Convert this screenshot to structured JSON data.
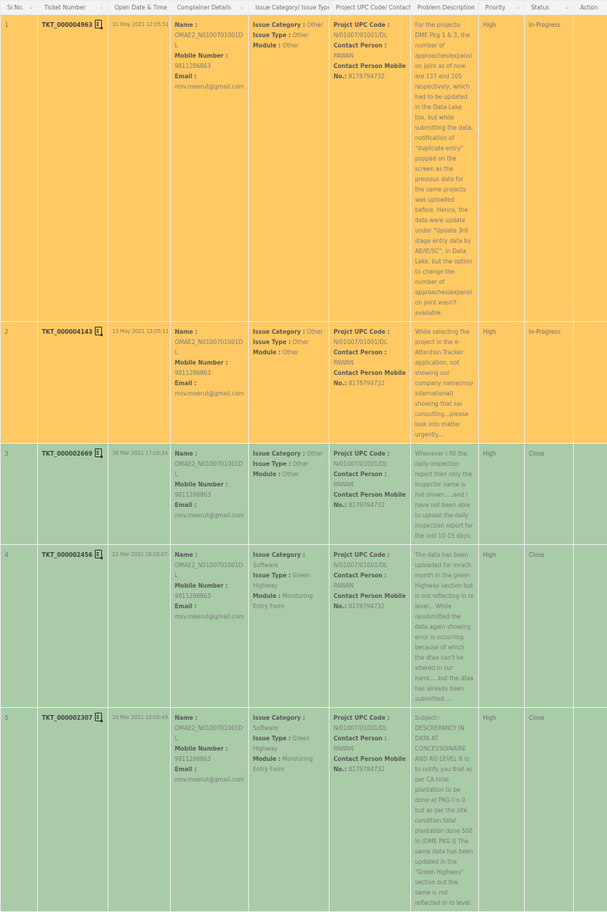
{
  "table": {
    "headers": [
      {
        "label": "Sr.No.",
        "sortable": true
      },
      {
        "label": "Ticket Number",
        "sortable": true
      },
      {
        "label": "Open Date & Time",
        "sortable": true
      },
      {
        "label": "Complainer Details",
        "sortable": true
      },
      {
        "label": "Issue Category/ Issue Type",
        "sortable": true
      },
      {
        "label": "Project UPC Code/ Contact",
        "sortable": true
      },
      {
        "label": "Problem Description",
        "sortable": true
      },
      {
        "label": "Priority",
        "sortable": true
      },
      {
        "label": "Status",
        "sortable": true
      },
      {
        "label": "Action",
        "sortable": false
      }
    ],
    "sort_icon": "chevron-down-icon",
    "labels": {
      "name": "Name :",
      "mobile": "Mobile Number :",
      "email": "Email :",
      "issue_category": "Issue Category :",
      "issue_type": "Issue Type :",
      "module": "Module :",
      "upc": "Projct UPC Code :",
      "contact_person": "Contact Person :",
      "contact_mobile": "Contact Person Mobile No.:"
    },
    "colors": {
      "in_progress_row": "#ffc964",
      "closed_row": "#a9cba8",
      "header_bg": "#f3f3f3"
    },
    "rows": [
      {
        "sr": "1",
        "ticket": "TKT_000004963",
        "ticket_icon": "clipboard-icon",
        "date": "31 May 2021 12:05:51",
        "name": "OMAE2_N0100701001DL",
        "mobile": "9811286863",
        "email": "msv.meerut@gmail.com",
        "issue_category": "Other",
        "issue_type": "Other",
        "module": "Other",
        "upc": "N/01007/01001/DL",
        "contact_person": "PAWAN",
        "contact_mobile": "8178794732",
        "description": "For the projects- DME Pkg 1 & 3, the number of approaches/expansion joint as of now are 137 and 105 respectively, which had to be updated in the Data Lake too, but while submitting the data, notification of \"duplicate entry\" popped on the screen as the previous data for the same projects was uploaded before. Hence, the data were update under \"Update 3rd stage entry data by AE/IE/SC\", in Data Lake, but the option to change the number of approaches/expansion joint wasn't available.",
        "priority": "High",
        "status": "In-Progress",
        "action": ""
      },
      {
        "sr": "2",
        "ticket": "TKT_000004143",
        "ticket_icon": "clipboard-icon",
        "date": "13 May 2021 13:05:11",
        "name": "OMAE2_N0100701001DL",
        "mobile": "9811286863",
        "email": "msv.meerut@gmail.com",
        "issue_category": "Other",
        "issue_type": "Other",
        "module": "Other",
        "upc": "N/01007/01001/DL",
        "contact_person": "PAWAN",
        "contact_mobile": "8178794732",
        "description": "While selecting the project in the e-Attention Tracker application, not showing our company name(msv international) showing that sai consulting...please look into matter urgently...",
        "priority": "High",
        "status": "In-Progress",
        "action": ""
      },
      {
        "sr": "3",
        "ticket": "TKT_000002669",
        "ticket_icon": "clipboard-icon",
        "date": "26 Mar 2021 17:03:34",
        "name": "OMAE2_N0100701001DL",
        "mobile": "9811286863",
        "email": "msv.meerut@gmail.com",
        "issue_category": "Other",
        "issue_type": "Other",
        "module": "Other",
        "upc": "N/01007/01001/DL",
        "contact_person": "PAWAN",
        "contact_mobile": "8178794732",
        "description": "Whenever I fill the daily inspection report then only the inspector name is not shown.....and I have not been able to upload the daily inspection report for the last 10-15 days.",
        "priority": "High",
        "status": "Close",
        "action": ""
      },
      {
        "sr": "4",
        "ticket": "TKT_000002456",
        "ticket_icon": "clipboard-icon",
        "date": "22 Mar 2021 16:03:07",
        "name": "OMAE2_N0100701001DL",
        "mobile": "9811286863",
        "email": "msv.meerut@gmail.com",
        "issue_category": "Software",
        "issue_type": "Green Highway",
        "module": "Monitoring Entry Form",
        "upc": "N/01007/01001/DL",
        "contact_person": "PAWAN",
        "contact_mobile": "8178794732",
        "description": "The data has been uploaded for mrach month in the green Highway section but is not reflecting in ro level... While resubmitted the data again showing error is occurring because of which the dtaa can't be altered in our hand.....but the dtaa has already been submitted....",
        "priority": "High",
        "status": "Close",
        "action": ""
      },
      {
        "sr": "5",
        "ticket": "TKT_000002307",
        "ticket_icon": "clipboard-icon",
        "date": "19 Mar 2021 12:03:49",
        "name": "OMAE2_N0100701001DL",
        "mobile": "9811286863",
        "email": "msv.meerut@gmail.com",
        "issue_category": "Software",
        "issue_type": "Green Highway",
        "module": "Monitoring Entry Form",
        "upc": "N/01007/01001/DL",
        "contact_person": "PAWAN",
        "contact_mobile": "8178794732",
        "description": "Subject:-DESCREPANCY IN DATA AT CONCESSOINAIRE AND RO LEVEL It is to notify you that as per CA total plantation to be done at PKG I is 0 but as per the site condition total plantation done 500 in (DME PKG I) The same data has been updated in the \"Green Highway\" section but the same is not reflected in ro level.",
        "priority": "High",
        "status": "Close",
        "action": ""
      }
    ]
  }
}
